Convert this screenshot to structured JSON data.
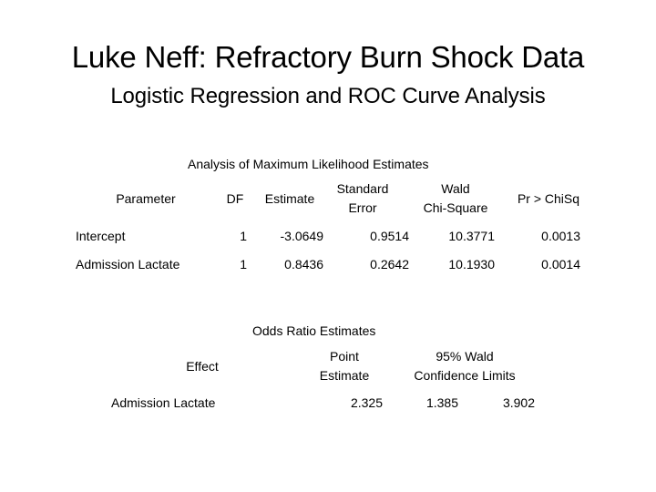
{
  "slide": {
    "title": "Luke Neff: Refractory Burn Shock Data",
    "subtitle": "Logistic Regression and ROC Curve Analysis"
  },
  "mle_table": {
    "caption": "Analysis of Maximum Likelihood Estimates",
    "headers": {
      "parameter": "Parameter",
      "df": "DF",
      "estimate": "Estimate",
      "standard_error_line1": "Standard",
      "standard_error_line2": "Error",
      "wald_line1": "Wald",
      "wald_line2": "Chi-Square",
      "pr": "Pr > ChiSq"
    },
    "rows": [
      {
        "parameter": "Intercept",
        "df": "1",
        "estimate": "-3.0649",
        "standard_error": "0.9514",
        "wald_chi_square": "10.3771",
        "pr_chisq": "0.0013"
      },
      {
        "parameter": "Admission Lactate",
        "df": "1",
        "estimate": "0.8436",
        "standard_error": "0.2642",
        "wald_chi_square": "10.1930",
        "pr_chisq": "0.0014"
      }
    ]
  },
  "odds_table": {
    "caption": "Odds Ratio Estimates",
    "headers": {
      "effect": "Effect",
      "point_line1": "Point",
      "point_line2": "Estimate",
      "ci_line1": "95% Wald",
      "ci_line2": "Confidence Limits"
    },
    "rows": [
      {
        "effect": "Admission Lactate",
        "point_estimate": "2.325",
        "lower": "1.385",
        "upper": "3.902"
      }
    ]
  }
}
